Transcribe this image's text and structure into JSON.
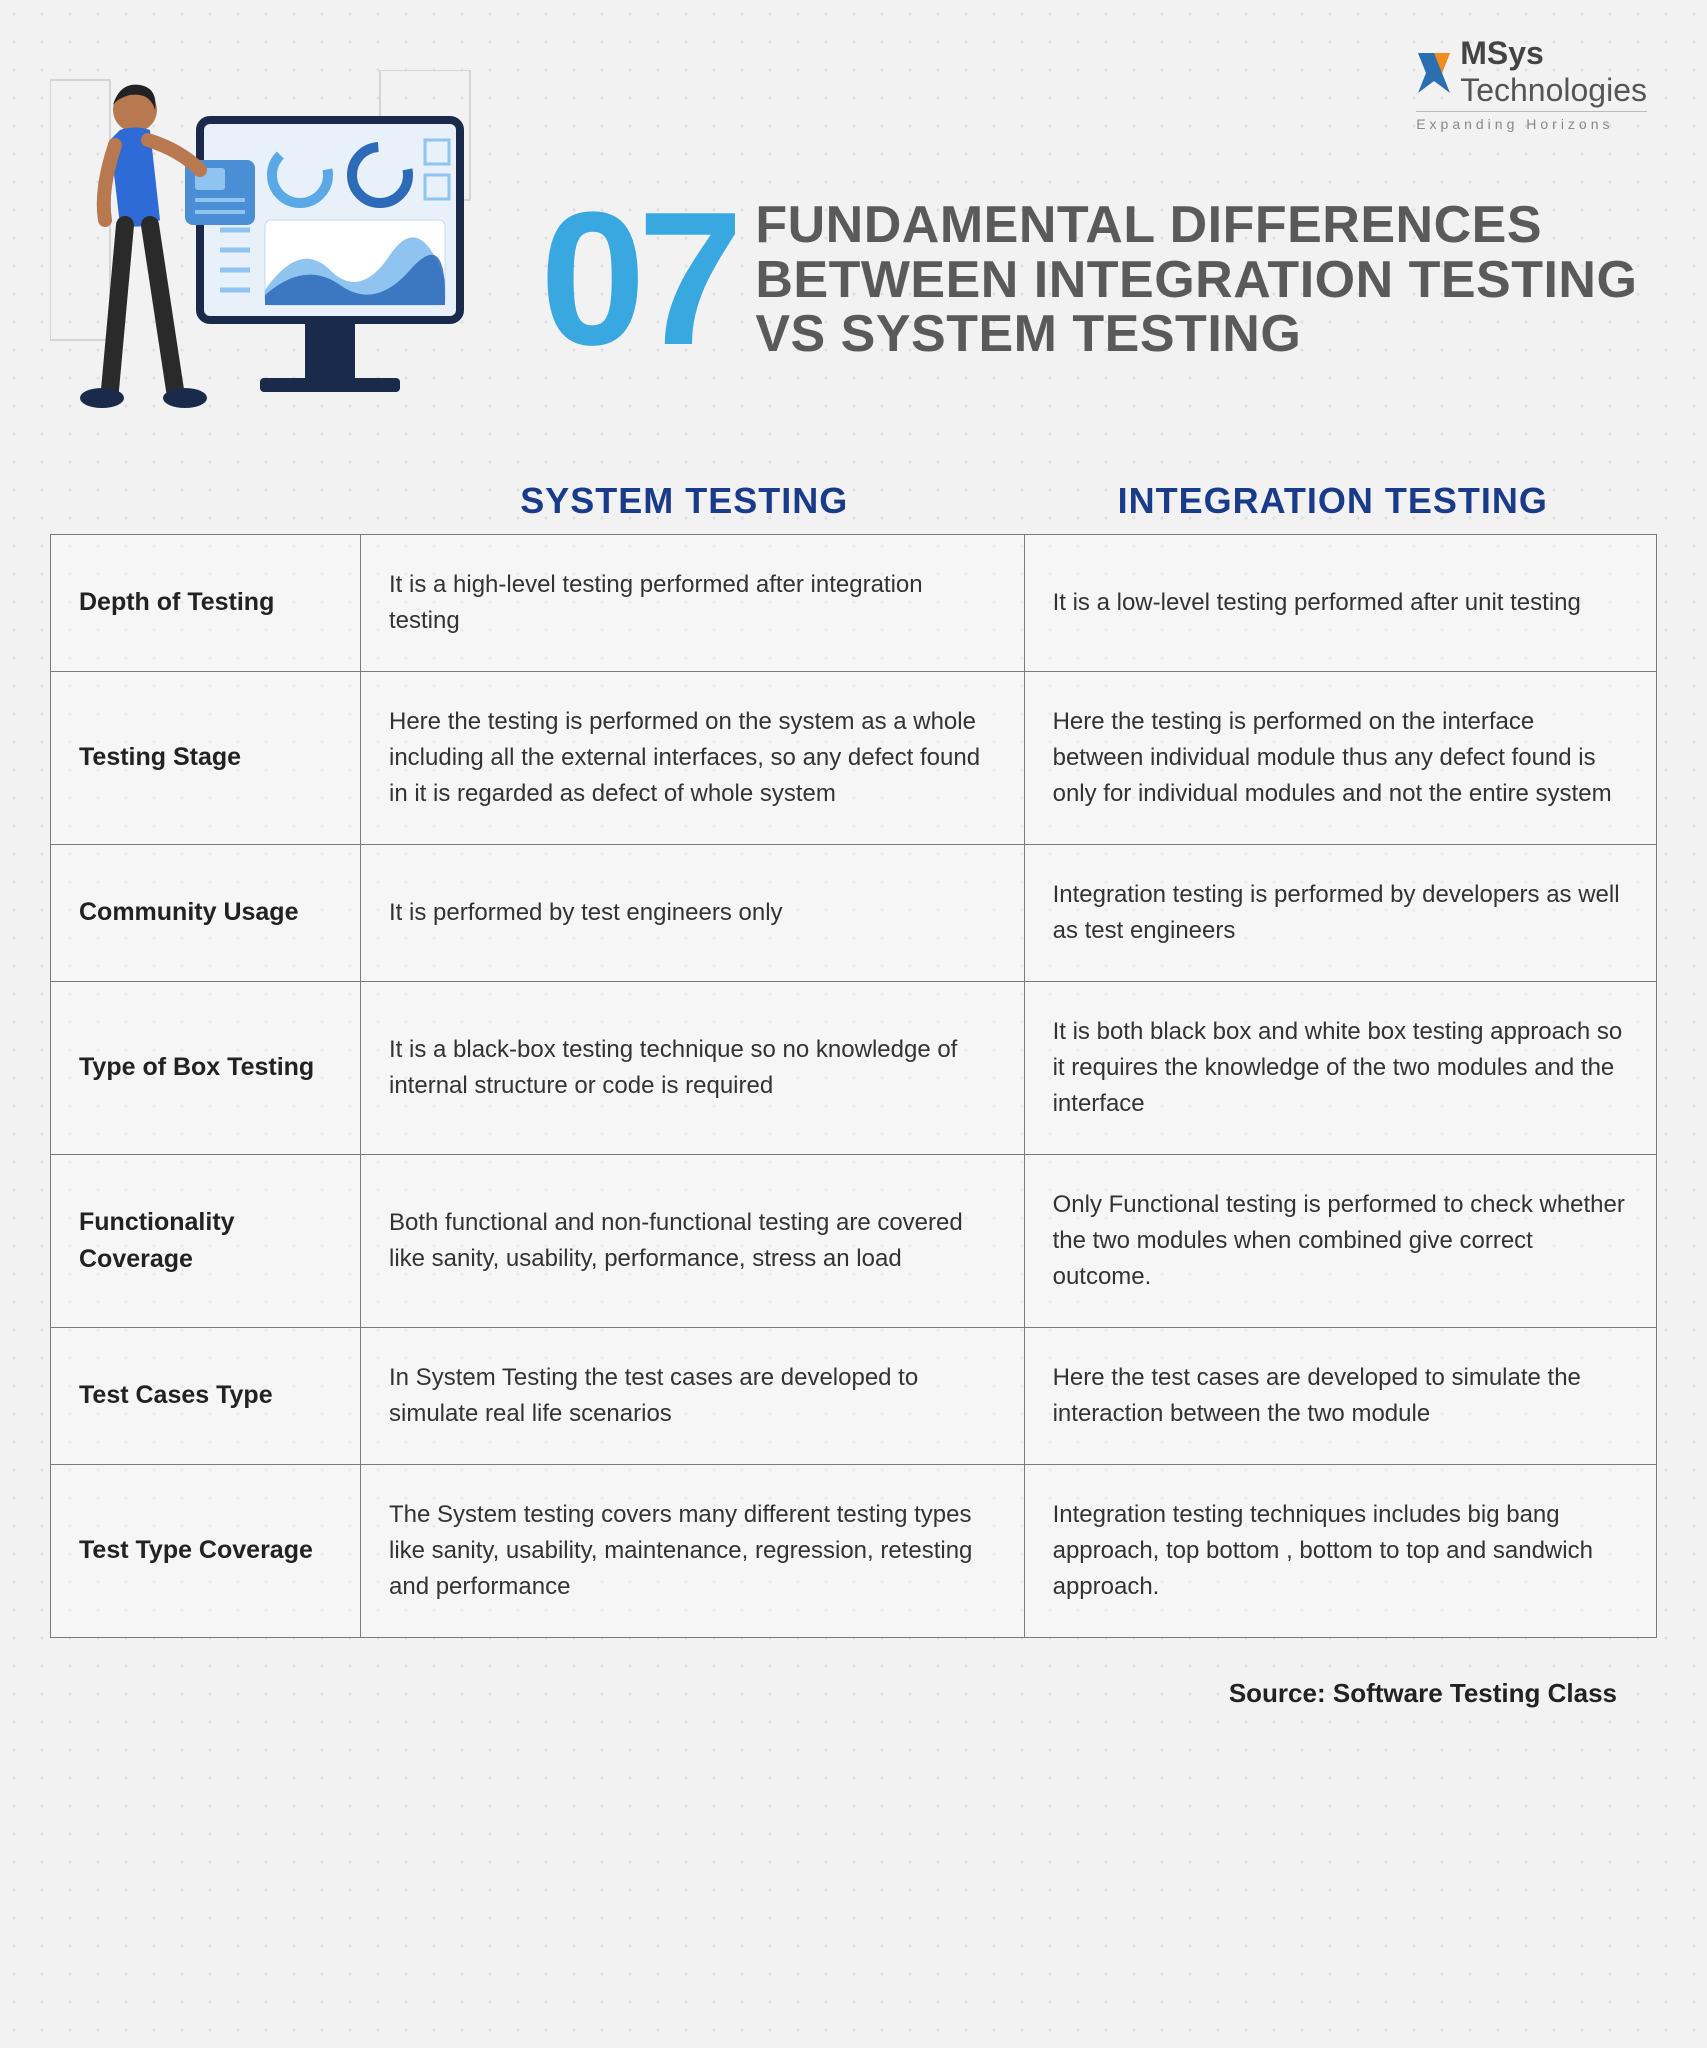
{
  "logo": {
    "name_html": "MSys",
    "name2": "Technologies",
    "tagline": "Expanding Horizons",
    "mark_color": "#2a6fb0",
    "accent_color": "#f08c1e"
  },
  "title": {
    "number": "07",
    "text": "FUNDAMENTAL DIFFERENCES BETWEEN INTEGRATION TESTING VS SYSTEM TESTING",
    "number_color": "#3aa8e0",
    "text_color": "#5a5a5a"
  },
  "columns": {
    "left": "SYSTEM TESTING",
    "right": "INTEGRATION TESTING",
    "header_color": "#1a3a8a"
  },
  "rows": [
    {
      "label": "Depth of Testing",
      "system": "It is a high-level testing performed after integration testing",
      "integration": "It is  a low-level testing performed after unit testing"
    },
    {
      "label": "Testing Stage",
      "system": "Here the testing is performed on the system as a whole including all the external interfaces, so any defect found in it is regarded as defect of whole system",
      "integration": "Here the testing is performed on the interface between individual module thus any defect found is only for individual modules and not the entire system"
    },
    {
      "label": "Community Usage",
      "system": "It is performed by test engineers only",
      "integration": "Integration testing is performed by developers as well as test engineers"
    },
    {
      "label": "Type of Box Testing",
      "system": "It is a black-box testing technique so no knowledge of internal structure or code is required",
      "integration": "It is both black box and white box testing approach so it requires the knowledge of the two modules and the interface"
    },
    {
      "label": "Functionality Coverage",
      "system": "Both functional and non-functional testing are covered like sanity, usability, performance, stress an load",
      "integration": "Only  Functional testing is performed to check whether the two modules when combined give correct outcome."
    },
    {
      "label": "Test Cases Type",
      "system": "In System Testing the test cases are developed to simulate real life scenarios",
      "integration": "Here the test cases are developed to simulate the interaction between the two module"
    },
    {
      "label": "Test Type Coverage",
      "system": "The System testing covers many different testing types like sanity, usability, maintenance, regression, retesting and performance",
      "integration": "Integration testing techniques includes big bang approach, top bottom , bottom to top and sandwich approach."
    }
  ],
  "source": "Source: Software Testing Class",
  "illustration": {
    "skin": "#b87850",
    "hair": "#222",
    "shirt": "#2f6bd6",
    "pants": "#2a2a2a",
    "screen_bg": "#e8f0fa",
    "screen_frame": "#1a2a4a",
    "accent": "#5aa9e6",
    "card": "#4a8fd6",
    "wave_dark": "#2d6bb8",
    "wave_light": "#8ec4ef"
  }
}
